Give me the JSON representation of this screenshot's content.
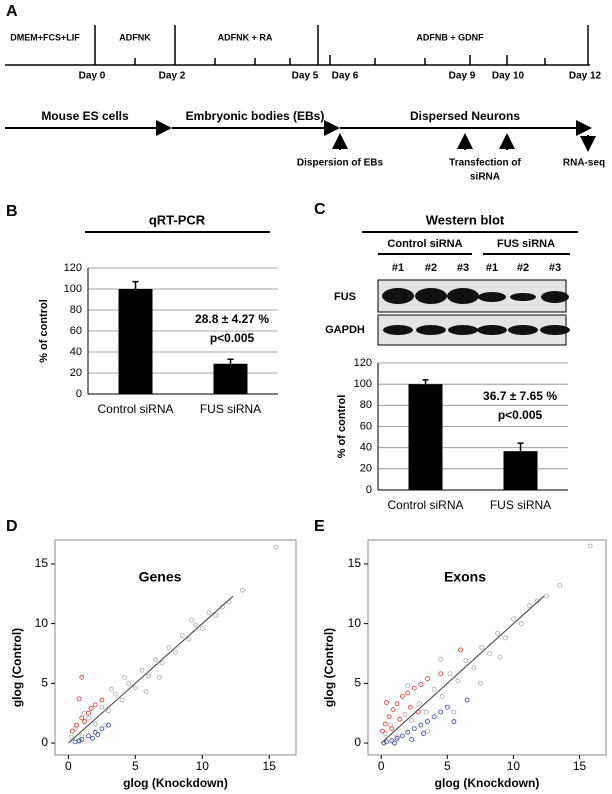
{
  "panels": [
    "A",
    "B",
    "C",
    "D",
    "E"
  ],
  "timeline": {
    "phases": [
      "DMEM+FCS+LIF",
      "ADFNK",
      "ADFNK + RA",
      "ADFNB + GDNF"
    ],
    "days": [
      "Day 0",
      "Day 2",
      "Day 5",
      "Day 6",
      "Day 9",
      "Day 10",
      "Day 12"
    ],
    "stages": [
      "Mouse ES cells",
      "Embryonic bodies (EBs)",
      "Dispersed Neurons"
    ],
    "events": [
      [
        "Dispersion of EBs"
      ],
      [
        "Transfection of",
        "siRNA"
      ],
      [
        "RNA-seq"
      ]
    ]
  },
  "western_blot": {
    "title": "Western blot",
    "groups": [
      "Control siRNA",
      "FUS siRNA"
    ],
    "lanes": [
      "#1",
      "#2",
      "#3",
      "#1",
      "#2",
      "#3"
    ],
    "rows": [
      "FUS",
      "GAPDH"
    ]
  },
  "chart_data": [
    {
      "type": "bar",
      "title": "qRT-PCR",
      "y_label": "% of control",
      "categories": [
        "Control siRNA",
        "FUS siRNA"
      ],
      "values": [
        100,
        28.8
      ],
      "errors": [
        7,
        4.27
      ],
      "color": "#000000",
      "ylim": [
        0,
        120
      ],
      "yticks": [
        0,
        20,
        40,
        60,
        80,
        100,
        120
      ],
      "grid": true,
      "annotations": [
        "28.8 ± 4.27 %",
        "p<0.005"
      ]
    },
    {
      "type": "bar",
      "y_label": "% of control",
      "categories": [
        "Control siRNA",
        "FUS siRNA"
      ],
      "values": [
        100,
        36.7
      ],
      "errors": [
        4,
        7.65
      ],
      "color": "#000000",
      "ylim": [
        0,
        120
      ],
      "yticks": [
        0,
        20,
        40,
        60,
        80,
        100,
        120
      ],
      "grid": true,
      "annotations": [
        "36.7 ± 7.65 %",
        "p<0.005"
      ]
    },
    {
      "type": "scatter",
      "title": "Genes",
      "x_label": "glog (Knockdown)",
      "y_label": "glog (Control)",
      "xlim": [
        -1,
        17
      ],
      "ylim": [
        -1,
        17
      ],
      "xticks": [
        0,
        5,
        10,
        15
      ],
      "yticks": [
        0,
        5,
        10,
        15
      ],
      "series": [
        {
          "color": "#aaaaaa",
          "x": [
            0.2,
            0.5,
            1,
            1.5,
            2,
            2.5,
            3,
            3.5,
            4,
            4.5,
            5,
            5.5,
            6,
            6.5,
            7,
            7.5,
            8,
            8.5,
            9,
            9.5,
            10,
            10.5,
            11,
            11.5,
            12,
            13,
            15.5,
            1.2,
            2.8,
            4.2,
            5.8,
            0.8,
            3.2,
            6.8,
            9.2
          ],
          "y": [
            0.5,
            1.2,
            0.6,
            2.1,
            1.6,
            3.0,
            2.7,
            4.1,
            3.6,
            5.0,
            4.6,
            6.1,
            5.6,
            7.0,
            6.7,
            8.0,
            7.6,
            9.0,
            8.7,
            9.9,
            9.6,
            10.9,
            10.7,
            11.4,
            11.8,
            12.8,
            16.4,
            2.5,
            1.5,
            5.5,
            4.3,
            0.1,
            4.5,
            5.5,
            10.3
          ]
        },
        {
          "color": "#e03030",
          "x": [
            0.3,
            0.6,
            1,
            1.5,
            2,
            0.8,
            1.2,
            2.5,
            1.7,
            1
          ],
          "y": [
            1.0,
            1.5,
            2.1,
            2.5,
            3.2,
            3.7,
            1.8,
            3.6,
            2.9,
            5.5
          ]
        },
        {
          "color": "#3040a0",
          "x": [
            0.5,
            1,
            1.5,
            2,
            2.5,
            3,
            0.8,
            1.8,
            2.2
          ],
          "y": [
            0.1,
            0.3,
            0.6,
            0.9,
            1.2,
            1.5,
            0.2,
            0.4,
            0.7
          ]
        }
      ],
      "fit_line": {
        "color": "#555555",
        "x": [
          0,
          12.3
        ],
        "y": [
          0,
          12.3
        ]
      }
    },
    {
      "type": "scatter",
      "title": "Exons",
      "x_label": "glog (Knockdown)",
      "y_label": "glog (Control)",
      "xlim": [
        -1,
        17
      ],
      "ylim": [
        -1,
        17
      ],
      "xticks": [
        0,
        5,
        10,
        15
      ],
      "yticks": [
        0,
        5,
        10,
        15
      ],
      "series": [
        {
          "color": "#aaaaaa",
          "x": [
            0.3,
            0.7,
            1.2,
            1.8,
            2.3,
            2.9,
            3.4,
            4,
            4.6,
            5.2,
            5.8,
            6.4,
            7,
            7.6,
            8.2,
            8.8,
            9.4,
            10,
            10.6,
            11.2,
            11.8,
            12.5,
            13.5,
            15.8,
            3.5,
            5.5,
            7.5,
            2,
            4.5,
            9
          ],
          "y": [
            0.8,
            1.5,
            0.5,
            2.4,
            1.9,
            3.3,
            2.6,
            4.5,
            3.9,
            5.8,
            5.2,
            6.9,
            6.3,
            8.0,
            7.5,
            9.2,
            8.8,
            10.4,
            10.0,
            11.5,
            11.9,
            12.3,
            13.2,
            16.5,
            1.0,
            2.6,
            5.0,
            4.8,
            7.0,
            7.2
          ]
        },
        {
          "color": "#e03030",
          "x": [
            0.1,
            0.3,
            0.6,
            0.9,
            1.2,
            1.6,
            2,
            2.5,
            3,
            0.4,
            0.8,
            1.4,
            2.2,
            3.5,
            4.5,
            2.8,
            6
          ],
          "y": [
            1.0,
            1.6,
            2.2,
            2.8,
            3.3,
            3.9,
            4.2,
            4.6,
            4.9,
            3.4,
            1.2,
            2.0,
            3.0,
            5.4,
            5.8,
            2.6,
            7.8
          ]
        },
        {
          "color": "#3040a0",
          "x": [
            0.4,
            0.8,
            1.2,
            1.6,
            2,
            2.5,
            3,
            3.5,
            4,
            4.5,
            5,
            1,
            2.3,
            3.2,
            5.5,
            6.5,
            0.2
          ],
          "y": [
            0.1,
            0.2,
            0.4,
            0.6,
            0.9,
            1.2,
            1.5,
            1.8,
            2.2,
            2.6,
            3.0,
            0.0,
            0.3,
            0.8,
            1.8,
            3.6,
            0.0
          ]
        }
      ],
      "fit_line": {
        "color": "#555555",
        "x": [
          0,
          12.3
        ],
        "y": [
          0,
          12.3
        ]
      }
    }
  ]
}
